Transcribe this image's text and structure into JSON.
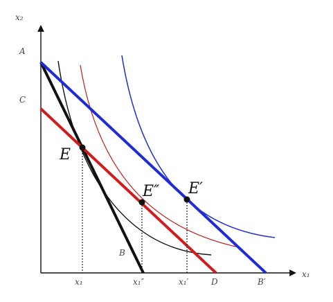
{
  "axes": {
    "y_label": "x₂",
    "x_label": "x₁"
  },
  "intercept_labels": {
    "A": "A",
    "C": "C",
    "B_inner": "B",
    "D": "D",
    "B_prime": "B′"
  },
  "x_tick_labels": {
    "x1": "x₁",
    "x1_double_prime": "x₁″",
    "x1_prime": "x₁′"
  },
  "points": {
    "E": "E",
    "E_double_prime": "E″",
    "E_prime": "E′"
  },
  "colors": {
    "budget_AB": "#111111",
    "budget_CD": "#d01c1c",
    "budget_AB_prime": "#1f2bd6",
    "indiff_black": "#111111",
    "indiff_red": "#c41a1a",
    "indiff_blue": "#1f2bd6",
    "axis": "#111111",
    "dotted": "#222222"
  }
}
